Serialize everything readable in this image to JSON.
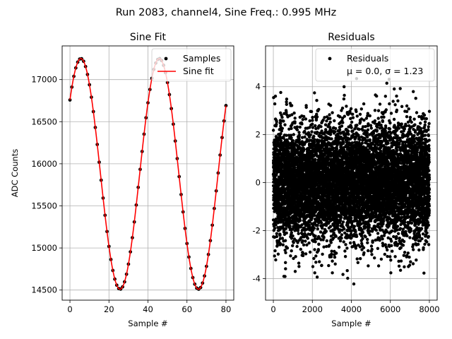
{
  "suptitle": "Run 2083, channel4, Sine Freq.: 0.995 MHz",
  "chart_data": [
    {
      "type": "line",
      "title": "Sine Fit",
      "xlabel": "Sample #",
      "ylabel": "ADC Counts",
      "xlim": [
        -4,
        84
      ],
      "ylim": [
        14380,
        17400
      ],
      "xticks": [
        0,
        20,
        40,
        60,
        80
      ],
      "yticks": [
        14500,
        15000,
        15500,
        16000,
        16500,
        17000
      ],
      "grid": true,
      "legend": {
        "placement": "top-right",
        "entries": [
          {
            "label": "Samples",
            "marker": "dot",
            "color": "#000000"
          },
          {
            "label": "Sine fit",
            "marker": "line",
            "color": "#ff0000"
          }
        ]
      },
      "series": [
        {
          "name": "Samples",
          "kind": "scatter",
          "color": "#000000",
          "sine": {
            "offset": 15880,
            "amplitude": 1370,
            "period_samples": 40.2,
            "peak_at": 5.6,
            "x_start": 0,
            "x_end": 80,
            "step": 1
          }
        },
        {
          "name": "Sine fit",
          "kind": "line",
          "color": "#ff0000",
          "sine": {
            "offset": 15880,
            "amplitude": 1370,
            "period_samples": 40.2,
            "peak_at": 5.6,
            "x_start": 0,
            "x_end": 80,
            "step": 0.25
          }
        }
      ]
    },
    {
      "type": "scatter",
      "title": "Residuals",
      "xlabel": "Sample #",
      "ylabel": "",
      "xlim": [
        -400,
        8400
      ],
      "ylim": [
        -4.9,
        5.7
      ],
      "xticks": [
        0,
        2000,
        4000,
        6000,
        8000
      ],
      "yticks": [
        -4,
        -2,
        0,
        2,
        4
      ],
      "grid": true,
      "legend": {
        "placement": "top-right",
        "entries": [
          {
            "label": "Residuals",
            "marker": "dot",
            "color": "#000000"
          }
        ],
        "annotation": "μ = 0.0, σ = 1.23"
      },
      "series": [
        {
          "name": "Residuals",
          "color": "#000000",
          "distribution": {
            "mean": 0.0,
            "std": 1.23,
            "count": 8000,
            "x_start": 0,
            "x_end": 8000
          }
        }
      ]
    }
  ]
}
